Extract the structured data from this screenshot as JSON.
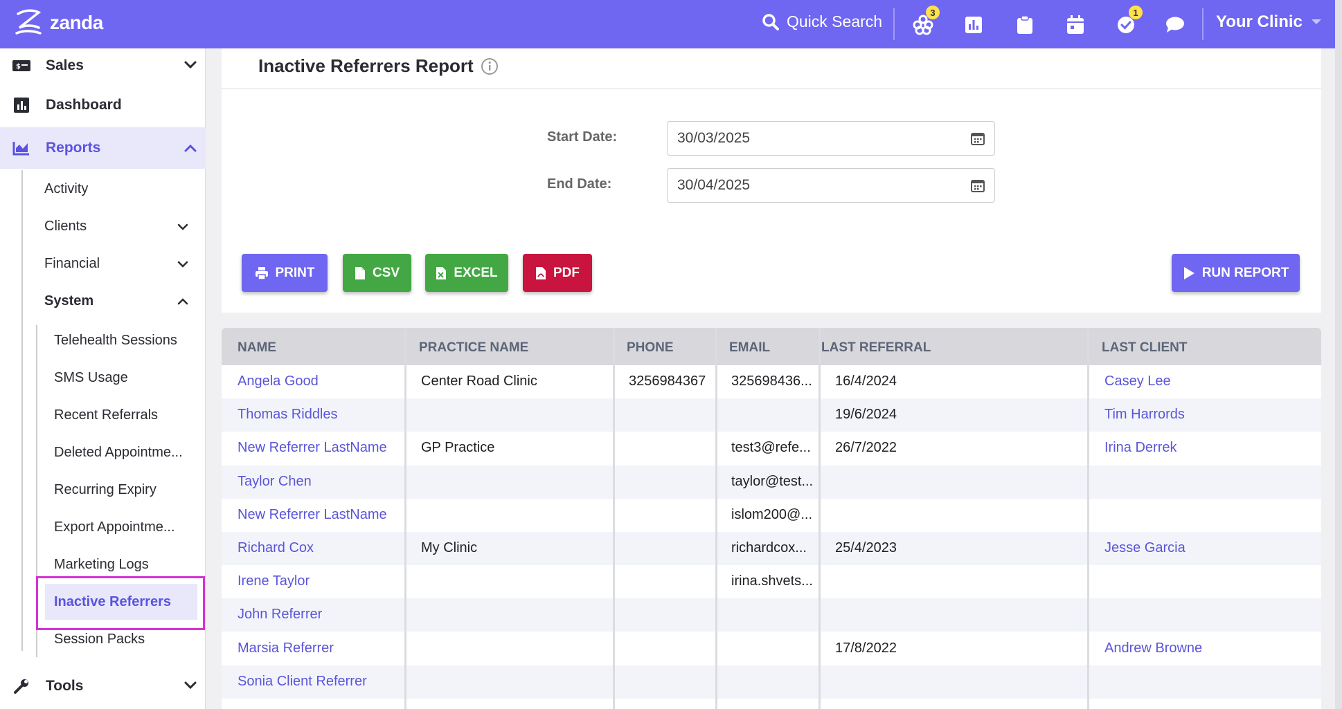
{
  "topbar": {
    "brand": "zanda",
    "quick_search": "Quick Search",
    "icons": [
      "apps-icon",
      "chart-icon",
      "clipboard-icon",
      "calendar-icon",
      "task-check-icon",
      "chat-icon"
    ],
    "apps_badge": "3",
    "tasks_badge": "1",
    "clinic": "Your Clinic",
    "accent": "#6f66f2"
  },
  "sidebar": {
    "sales": "Sales",
    "dashboard": "Dashboard",
    "reports": "Reports",
    "reports_children": {
      "activity": "Activity",
      "clients": "Clients",
      "financial": "Financial",
      "system": "System"
    },
    "system_children": [
      "Telehealth Sessions",
      "SMS Usage",
      "Recent Referrals",
      "Deleted Appointme...",
      "Recurring Expiry",
      "Export Appointme...",
      "Marketing Logs",
      "Inactive Referrers",
      "Session Packs"
    ],
    "tools": "Tools"
  },
  "report": {
    "title": "Inactive Referrers Report",
    "start_label": "Start Date:",
    "start_value": "30/03/2025",
    "end_label": "End Date:",
    "end_value": "30/04/2025",
    "buttons": {
      "print": "PRINT",
      "csv": "CSV",
      "excel": "EXCEL",
      "pdf": "PDF",
      "run": "RUN REPORT"
    }
  },
  "table": {
    "headers": [
      "NAME",
      "PRACTICE NAME",
      "PHONE",
      "EMAIL",
      "LAST REFERRAL",
      "LAST CLIENT"
    ],
    "rows": [
      {
        "name": "Angela Good",
        "practice": "Center Road Clinic",
        "phone": "3256984367",
        "email": "325698436...",
        "last_referral": "16/4/2024",
        "last_client": "Casey Lee"
      },
      {
        "name": "Thomas Riddles",
        "practice": "",
        "phone": "",
        "email": "",
        "last_referral": "19/6/2024",
        "last_client": "Tim Harrords"
      },
      {
        "name": "New Referrer LastName",
        "practice": "GP Practice",
        "phone": "",
        "email": "test3@refe...",
        "last_referral": "26/7/2022",
        "last_client": "Irina Derrek"
      },
      {
        "name": "Taylor Chen",
        "practice": "",
        "phone": "",
        "email": "taylor@test...",
        "last_referral": "",
        "last_client": ""
      },
      {
        "name": "New Referrer LastName",
        "practice": "",
        "phone": "",
        "email": "islom200@...",
        "last_referral": "",
        "last_client": ""
      },
      {
        "name": "Richard Cox",
        "practice": "My Clinic",
        "phone": "",
        "email": "richardcox...",
        "last_referral": "25/4/2023",
        "last_client": "Jesse Garcia"
      },
      {
        "name": "Irene Taylor",
        "practice": "",
        "phone": "",
        "email": "irina.shvets...",
        "last_referral": "",
        "last_client": ""
      },
      {
        "name": "John Referrer",
        "practice": "",
        "phone": "",
        "email": "",
        "last_referral": "",
        "last_client": ""
      },
      {
        "name": "Marsia Referrer",
        "practice": "",
        "phone": "",
        "email": "",
        "last_referral": "17/8/2022",
        "last_client": "Andrew Browne"
      },
      {
        "name": "Sonia Client Referrer",
        "practice": "",
        "phone": "",
        "email": "",
        "last_referral": "",
        "last_client": ""
      }
    ]
  },
  "colors": {
    "print": "#6f66f2",
    "csv": "#43a843",
    "excel": "#43a843",
    "pdf": "#c8143e",
    "run": "#6f66f2",
    "link": "#5a55d9",
    "highlight_box": "#d631d6"
  }
}
